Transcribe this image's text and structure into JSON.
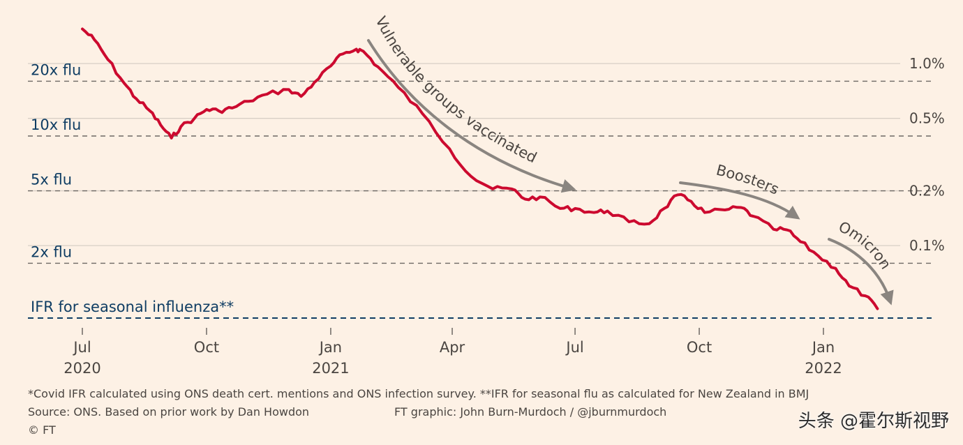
{
  "chart_data": {
    "type": "line",
    "scale": "log",
    "series": [
      {
        "name": "Covid IFR",
        "color": "#cc0a2f",
        "points": [
          [
            "2020-07-01",
            1.55
          ],
          [
            "2020-07-10",
            1.35
          ],
          [
            "2020-07-20",
            1.05
          ],
          [
            "2020-08-01",
            0.78
          ],
          [
            "2020-08-10",
            0.64
          ],
          [
            "2020-08-20",
            0.55
          ],
          [
            "2020-08-28",
            0.46
          ],
          [
            "2020-09-05",
            0.39
          ],
          [
            "2020-09-12",
            0.45
          ],
          [
            "2020-09-22",
            0.5
          ],
          [
            "2020-10-01",
            0.56
          ],
          [
            "2020-10-10",
            0.55
          ],
          [
            "2020-10-20",
            0.57
          ],
          [
            "2020-11-01",
            0.62
          ],
          [
            "2020-11-15",
            0.68
          ],
          [
            "2020-12-01",
            0.72
          ],
          [
            "2020-12-10",
            0.66
          ],
          [
            "2020-12-20",
            0.79
          ],
          [
            "2021-01-01",
            0.97
          ],
          [
            "2021-01-10",
            1.13
          ],
          [
            "2021-01-20",
            1.2
          ],
          [
            "2021-01-25",
            1.17
          ],
          [
            "2021-02-05",
            0.96
          ],
          [
            "2021-02-20",
            0.74
          ],
          [
            "2021-03-10",
            0.53
          ],
          [
            "2021-03-30",
            0.34
          ],
          [
            "2021-04-15",
            0.24
          ],
          [
            "2021-05-01",
            0.205
          ],
          [
            "2021-05-15",
            0.205
          ],
          [
            "2021-05-25",
            0.18
          ],
          [
            "2021-06-05",
            0.185
          ],
          [
            "2021-06-20",
            0.16
          ],
          [
            "2021-07-01",
            0.16
          ],
          [
            "2021-07-15",
            0.152
          ],
          [
            "2021-07-25",
            0.155
          ],
          [
            "2021-08-10",
            0.135
          ],
          [
            "2021-08-25",
            0.132
          ],
          [
            "2021-09-05",
            0.16
          ],
          [
            "2021-09-15",
            0.19
          ],
          [
            "2021-09-25",
            0.175
          ],
          [
            "2021-10-05",
            0.152
          ],
          [
            "2021-10-20",
            0.157
          ],
          [
            "2021-11-01",
            0.162
          ],
          [
            "2021-11-10",
            0.145
          ],
          [
            "2021-11-25",
            0.123
          ],
          [
            "2021-12-05",
            0.122
          ],
          [
            "2021-12-15",
            0.105
          ],
          [
            "2021-12-28",
            0.088
          ],
          [
            "2022-01-10",
            0.075
          ],
          [
            "2022-01-20",
            0.06
          ],
          [
            "2022-02-01",
            0.053
          ],
          [
            "2022-02-10",
            0.045
          ]
        ]
      }
    ],
    "x_ticks": [
      {
        "date": "2020-07-01",
        "label": "Jul",
        "year": "2020"
      },
      {
        "date": "2020-10-01",
        "label": "Oct",
        "year": ""
      },
      {
        "date": "2021-01-01",
        "label": "Jan",
        "year": "2021"
      },
      {
        "date": "2021-04-01",
        "label": "Apr",
        "year": ""
      },
      {
        "date": "2021-07-01",
        "label": "Jul",
        "year": ""
      },
      {
        "date": "2021-10-01",
        "label": "Oct",
        "year": ""
      },
      {
        "date": "2022-01-01",
        "label": "Jan",
        "year": "2022"
      }
    ],
    "reference_lines": [
      {
        "label": "20x flu",
        "value": 0.8
      },
      {
        "label": "10x flu",
        "value": 0.4
      },
      {
        "label": "5x flu",
        "value": 0.2
      },
      {
        "label": "2x flu",
        "value": 0.08
      },
      {
        "label": "IFR for seasonal influenza**",
        "value": 0.04
      }
    ],
    "right_axis": [
      {
        "label": "1.0%",
        "value": 1.0
      },
      {
        "label": "0.5%",
        "value": 0.5
      },
      {
        "label": "0.2%",
        "value": 0.2
      },
      {
        "label": "0.1%",
        "value": 0.1
      }
    ],
    "annotations": [
      {
        "text": "Vulnerable groups vaccinated"
      },
      {
        "text": "Boosters"
      },
      {
        "text": "Omicron"
      }
    ]
  },
  "footer": {
    "note": "*Covid IFR calculated using ONS death cert. mentions and ONS infection survey. **IFR for seasonal flu as calculated for New Zealand in BMJ",
    "source": "Source: ONS. Based on prior work by Dan Howdon",
    "credit": "FT graphic: John Burn-Murdoch / @jburnmurdoch",
    "copyright": "© FT"
  },
  "watermark": "头条 @霍尔斯视野"
}
